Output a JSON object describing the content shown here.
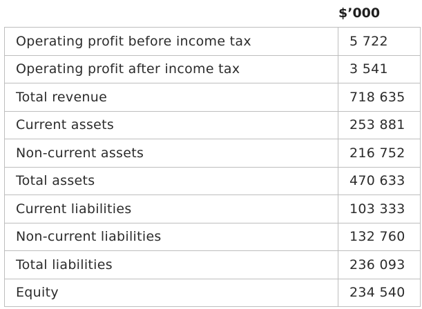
{
  "table": {
    "unit_header": "$’000",
    "rows": [
      {
        "label": "Operating profit before income tax",
        "value": "5 722"
      },
      {
        "label": "Operating profit after income tax",
        "value": "3 541"
      },
      {
        "label": "Total revenue",
        "value": "718 635"
      },
      {
        "label": "Current assets",
        "value": "253 881"
      },
      {
        "label": "Non-current assets",
        "value": "216 752"
      },
      {
        "label": "Total assets",
        "value": "470 633"
      },
      {
        "label": "Current liabilities",
        "value": "103 333"
      },
      {
        "label": "Non-current liabilities",
        "value": "132 760"
      },
      {
        "label": "Total liabilities",
        "value": "236 093"
      },
      {
        "label": "Equity",
        "value": "234 540"
      }
    ]
  }
}
